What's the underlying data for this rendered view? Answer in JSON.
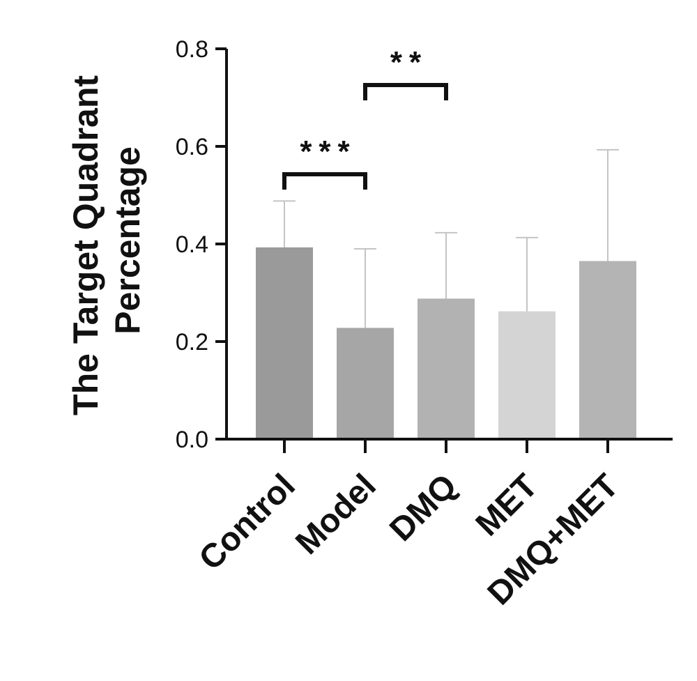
{
  "chart_data": {
    "type": "bar",
    "ylabel": "The Target Quadrant Percentage",
    "ylim": [
      0,
      0.8
    ],
    "yticks": [
      "0.0",
      "0.2",
      "0.4",
      "0.6",
      "0.8"
    ],
    "yticks_values": [
      0,
      0.2,
      0.4,
      0.6,
      0.8
    ],
    "categories": [
      "Control",
      "Model",
      "DMQ",
      "MET",
      "DMQ+MET"
    ],
    "values": [
      0.393,
      0.228,
      0.288,
      0.262,
      0.365
    ],
    "error_upper": [
      0.488,
      0.39,
      0.423,
      0.413,
      0.593
    ],
    "colors": [
      "#9a9a9a",
      "#a6a6a6",
      "#b2b2b2",
      "#d4d4d4",
      "#b4b4b4"
    ],
    "significance": [
      {
        "from": 0,
        "to": 1,
        "label": "***"
      },
      {
        "from": 1,
        "to": 2,
        "label": "**"
      }
    ],
    "grid": false,
    "legend": "none"
  }
}
